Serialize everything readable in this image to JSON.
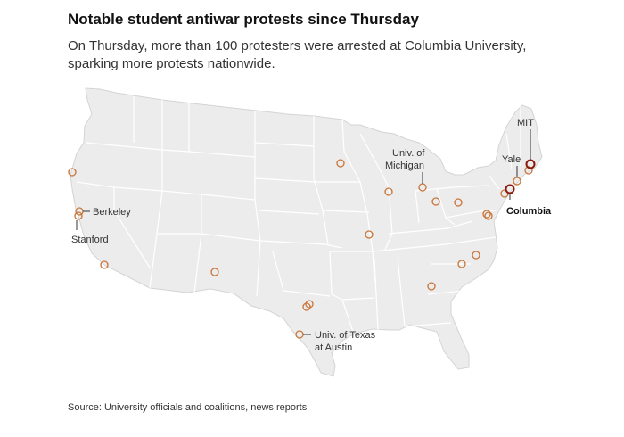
{
  "header": {
    "title": "Notable student antiwar protests since Thursday",
    "subtitle": "On Thursday, more than 100 protesters were arrested at Columbia University, sparking more protests nationwide."
  },
  "colors": {
    "land": "#ececec",
    "border": "#ffffff",
    "marker": "#c8753a",
    "highlight": "#8b1a0e",
    "leader": "#333333"
  },
  "map": {
    "region": "United States (contiguous)",
    "marker_style": "open circle",
    "labels": {
      "mit": "MIT",
      "yale": "Yale",
      "columbia": "Columbia",
      "michigan_line1": "Univ. of",
      "michigan_line2": "Michigan",
      "berkeley": "Berkeley",
      "stanford": "Stanford",
      "texas_line1": "Univ. of Texas",
      "texas_line2": "at Austin"
    },
    "protests": [
      {
        "key": "columbia",
        "lat": 40.81,
        "lon": -73.96,
        "highlight": true
      },
      {
        "key": "mit",
        "lat": 42.36,
        "lon": -71.09,
        "highlight": true
      },
      {
        "key": "yale",
        "lat": 41.31,
        "lon": -72.92,
        "highlight": false
      },
      {
        "key": "michigan",
        "lat": 42.28,
        "lon": -83.74,
        "highlight": false
      },
      {
        "key": "berkeley",
        "lat": 37.87,
        "lon": -122.26,
        "highlight": false
      },
      {
        "key": "stanford",
        "lat": 37.43,
        "lon": -122.17,
        "highlight": false
      },
      {
        "key": "texas",
        "lat": 30.28,
        "lon": -97.73,
        "highlight": false
      }
    ]
  },
  "source": "Source: University officials and coalitions, news reports"
}
